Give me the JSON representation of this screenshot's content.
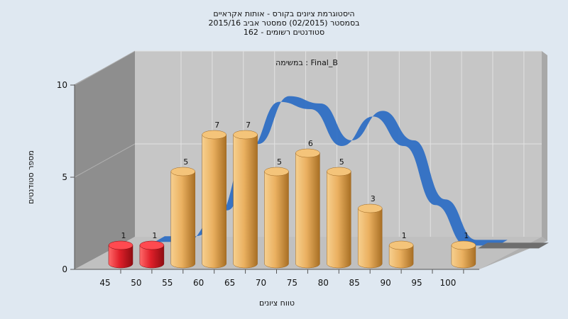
{
  "chart_data": {
    "type": "bar",
    "title_lines": [
      "היסטוגרמת ציונים בקורס - אותות אקראיים",
      "בסמסטר  (02/2015)  סמסטר אביב 2015/16",
      "סטודנטים רשומים - 162"
    ],
    "inner_title": "במשימה : Final_B",
    "xlabel": "טווח ציונים",
    "ylabel": "מספר סטודנטים",
    "x_ticks": [
      "45",
      "50",
      "55",
      "60",
      "65",
      "70",
      "75",
      "80",
      "85",
      "90",
      "95",
      "100"
    ],
    "y_ticks": [
      "0",
      "5",
      "10"
    ],
    "ylim": [
      0,
      10
    ],
    "categories": [
      "45-50",
      "50-55",
      "55-60",
      "60-65",
      "65-70",
      "70-75",
      "75-80",
      "80-85",
      "85-90",
      "90-95",
      "95-100",
      "100"
    ],
    "values": [
      1,
      1,
      5,
      7,
      7,
      5,
      6,
      5,
      3,
      1,
      0,
      1
    ],
    "data_labels": [
      "1",
      "1",
      "5",
      "7",
      "7",
      "5",
      "6",
      "5",
      "3",
      "1",
      "",
      "1"
    ],
    "bar_colors": [
      "#e0202a",
      "#e0202a",
      "#e6a44c",
      "#e6a44c",
      "#e6a44c",
      "#e6a44c",
      "#e6a44c",
      "#e6a44c",
      "#e6a44c",
      "#e6a44c",
      "#e6a44c",
      "#e6a44c"
    ],
    "distribution_curve": {
      "color": "#2f6fc4",
      "x": [
        47.5,
        52.5,
        57.5,
        62.5,
        67.5,
        72.5,
        77.5,
        82.5,
        87.5,
        92.5,
        97.5,
        102.5
      ],
      "y": [
        0.8,
        0.8,
        2.2,
        5.8,
        8.4,
        8.0,
        6.0,
        7.6,
        6.0,
        2.8,
        0.6,
        0.6
      ]
    },
    "colors": {
      "wall": "#c6c6c6",
      "left_wall": "#8e8e8e",
      "floor": "#c0c0c0",
      "background": "#dfe8f1"
    },
    "grid": true,
    "legend": "none"
  }
}
